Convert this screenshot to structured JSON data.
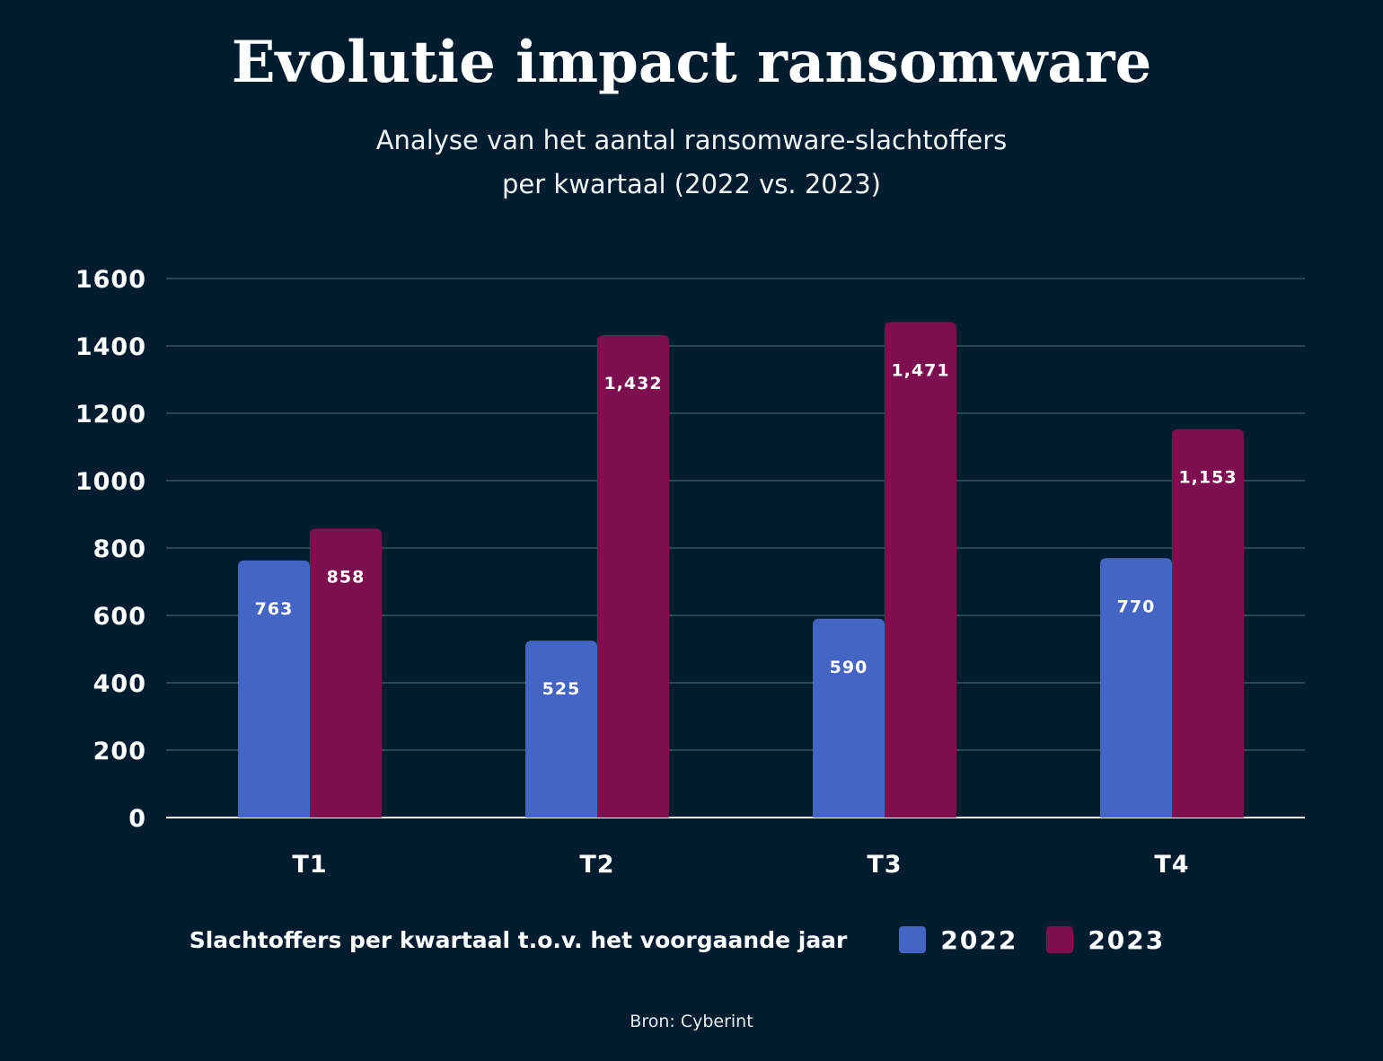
{
  "header": {
    "title": "Evolutie impact ransomware",
    "subtitle_line1": "Analyse van het aantal ransomware-slachtoffers",
    "subtitle_line2": "per kwartaal (2022 vs. 2023)"
  },
  "legend": {
    "title": "Slachtoffers per kwartaal t.o.v. het voorgaande jaar"
  },
  "source": "Bron: Cyberint",
  "colors": {
    "background": "#001d30",
    "series_2022": "#4565c4",
    "series_2023": "#7d0f50",
    "gridline": "#3a5064"
  },
  "chart_data": {
    "type": "bar",
    "title": "Evolutie impact ransomware",
    "categories": [
      "T1",
      "T2",
      "T3",
      "T4"
    ],
    "series": [
      {
        "name": "2022",
        "values": [
          763,
          525,
          590,
          770
        ],
        "labels": [
          "763",
          "525",
          "590",
          "770"
        ],
        "color": "#4565c4"
      },
      {
        "name": "2023",
        "values": [
          858,
          1432,
          1471,
          1153
        ],
        "labels": [
          "858",
          "1,432",
          "1,471",
          "1,153"
        ],
        "color": "#7d0f50"
      }
    ],
    "ylim": [
      0,
      1600
    ],
    "yticks": [
      0,
      200,
      400,
      600,
      800,
      1000,
      1200,
      1400,
      1600
    ],
    "grid": true,
    "legend_position": "bottom"
  }
}
